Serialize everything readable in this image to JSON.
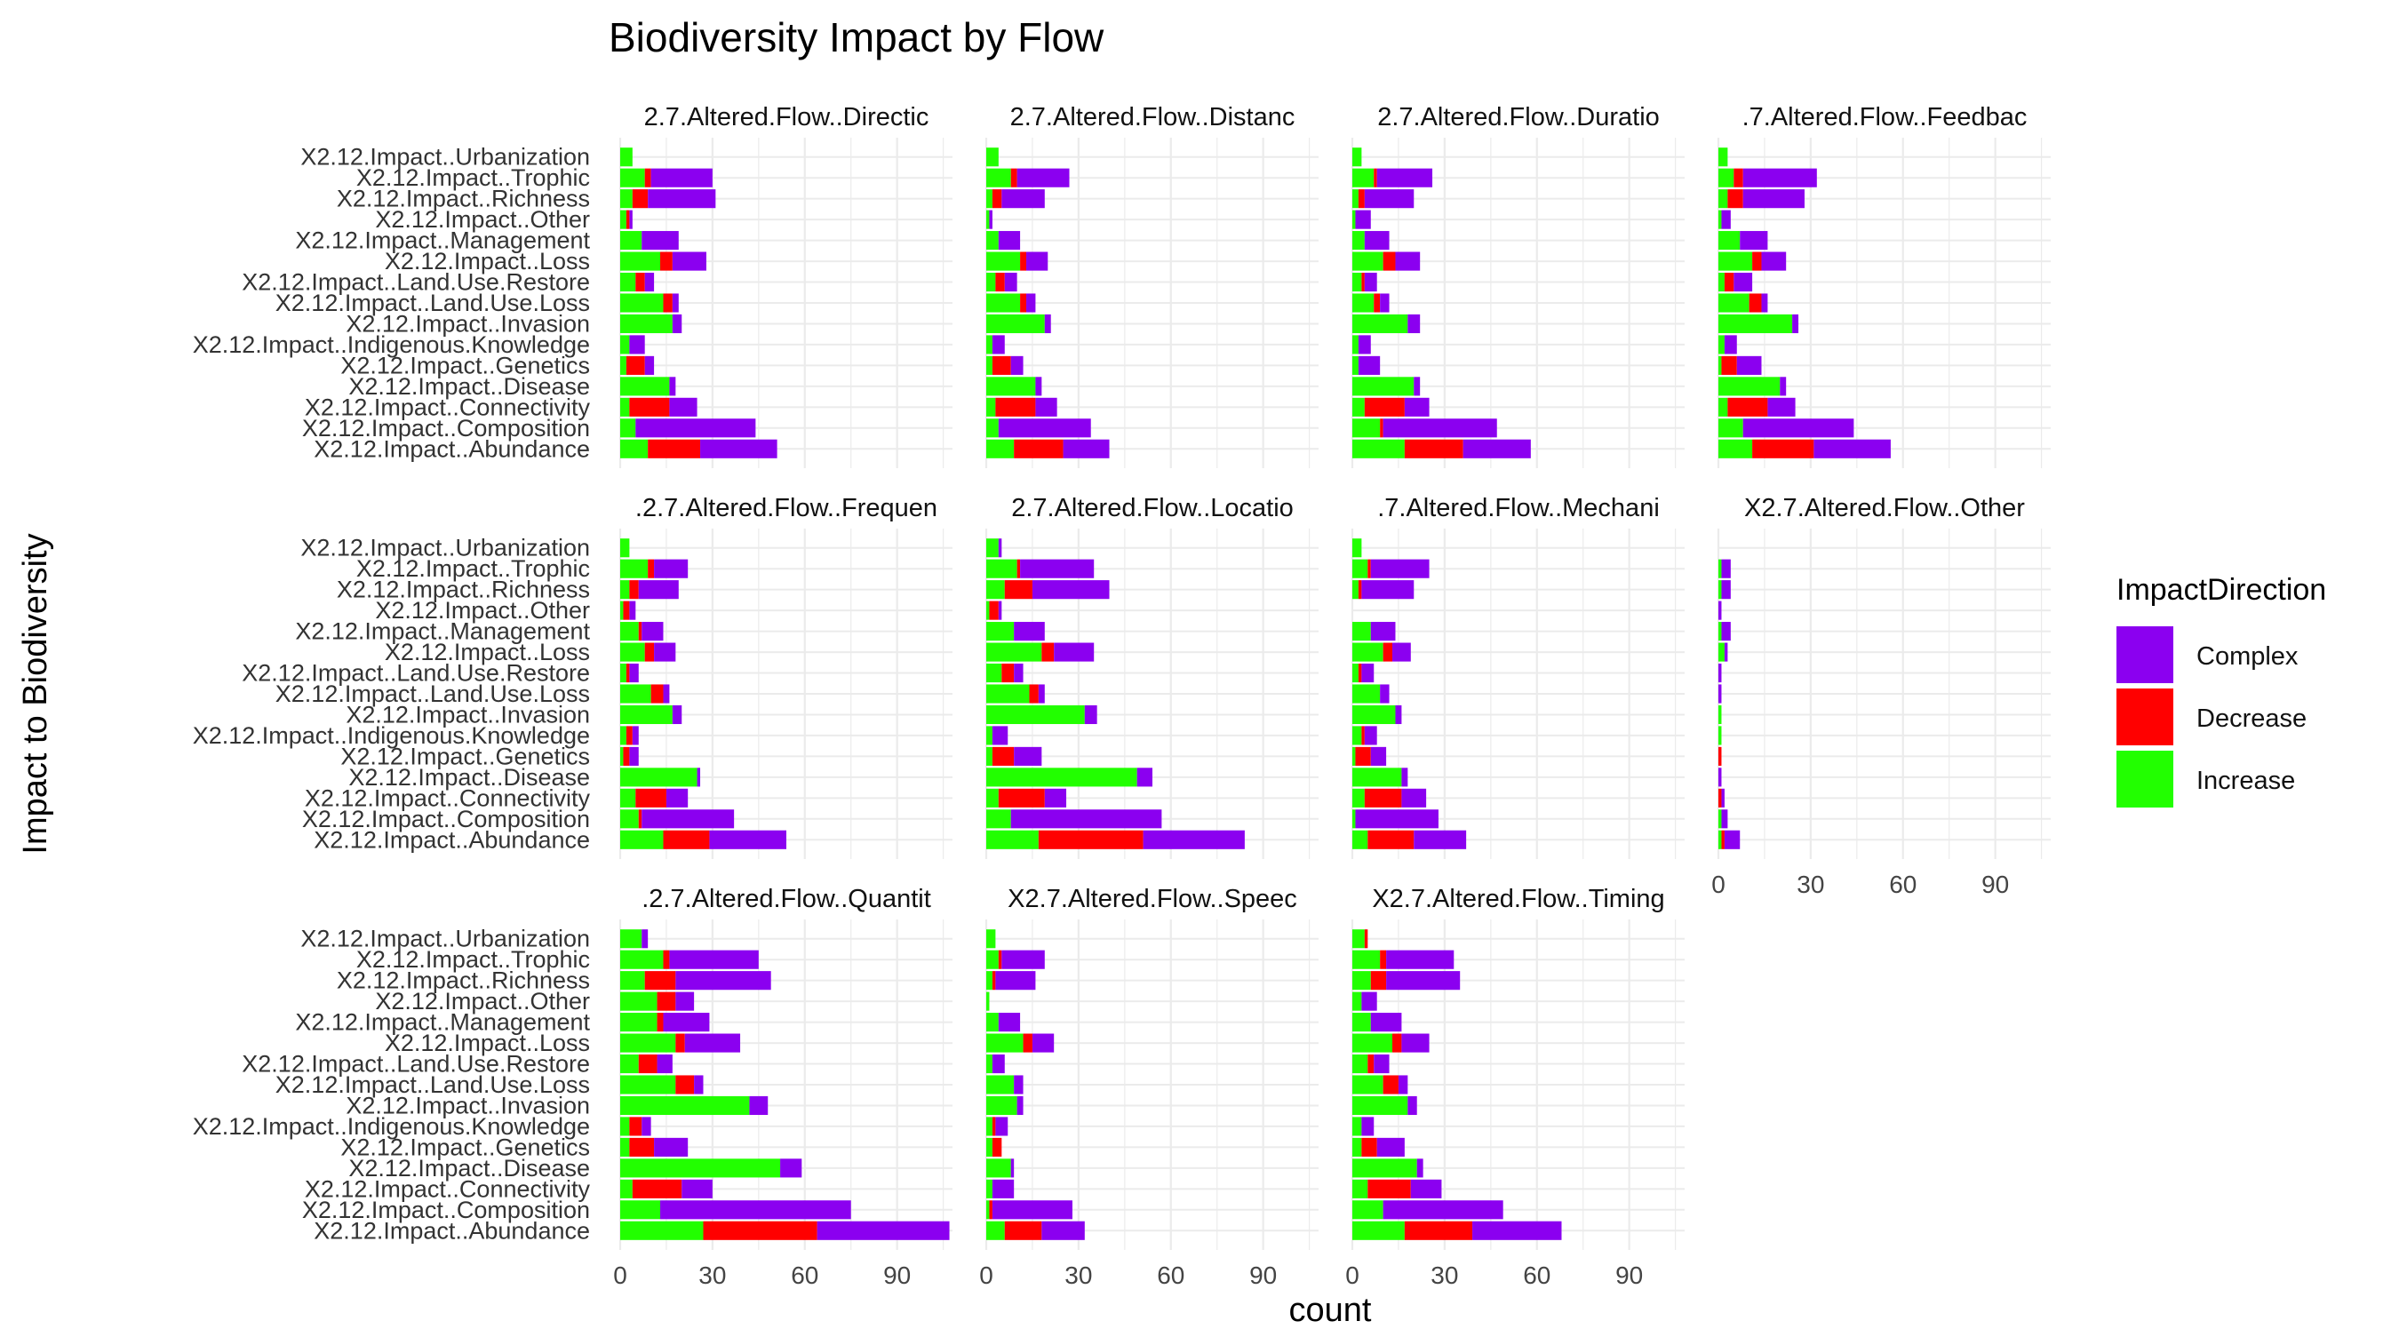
{
  "colors": {
    "Complex": "#8B00F0",
    "Decrease": "#FF0000",
    "Increase": "#22FF00",
    "panel_bg": "#FFFFFF",
    "grid": "#EBEBEB"
  },
  "chart_data": {
    "type": "bar",
    "orientation": "horizontal",
    "stacked": true,
    "title": "Biodiversity Impact by Flow",
    "xlabel": "count",
    "ylabel": "Impact to Biodiversity",
    "xlim": [
      0,
      108
    ],
    "x_ticks": [
      0,
      30,
      60,
      90
    ],
    "grid": true,
    "legend_position": "right",
    "legend_title": "ImpactDirection",
    "legend": [
      "Complex",
      "Decrease",
      "Increase"
    ],
    "stack_order": [
      "Increase",
      "Decrease",
      "Complex"
    ],
    "categories": [
      "X2.12.Impact..Urbanization",
      "X2.12.Impact..Trophic",
      "X2.12.Impact..Richness",
      "X2.12.Impact..Other",
      "X2.12.Impact..Management",
      "X2.12.Impact..Loss",
      "X2.12.Impact..Land.Use.Restore",
      "X2.12.Impact..Land.Use.Loss",
      "X2.12.Impact..Invasion",
      "X2.12.Impact..Indigenous.Knowledge",
      "X2.12.Impact..Genetics",
      "X2.12.Impact..Disease",
      "X2.12.Impact..Connectivity",
      "X2.12.Impact..Composition",
      "X2.12.Impact..Abundance"
    ],
    "facets": [
      {
        "strip": "2.7.Altered.Flow..Directic",
        "Increase": [
          4,
          8,
          4,
          2,
          7,
          13,
          5,
          14,
          17,
          3,
          2,
          16,
          3,
          5,
          9
        ],
        "Decrease": [
          0,
          2,
          5,
          1,
          0,
          4,
          3,
          3,
          0,
          0,
          6,
          0,
          13,
          0,
          17
        ],
        "Complex": [
          0,
          20,
          22,
          1,
          12,
          11,
          3,
          2,
          3,
          5,
          3,
          2,
          9,
          39,
          25
        ]
      },
      {
        "strip": "2.7.Altered.Flow..Distanc",
        "Increase": [
          4,
          8,
          2,
          1,
          4,
          11,
          3,
          11,
          19,
          2,
          2,
          16,
          3,
          4,
          9
        ],
        "Decrease": [
          0,
          2,
          3,
          0,
          0,
          2,
          3,
          2,
          0,
          0,
          6,
          0,
          13,
          0,
          16
        ],
        "Complex": [
          0,
          17,
          14,
          1,
          7,
          7,
          4,
          3,
          2,
          4,
          4,
          2,
          7,
          30,
          15
        ]
      },
      {
        "strip": "2.7.Altered.Flow..Duratio",
        "Increase": [
          3,
          7,
          2,
          1,
          4,
          10,
          3,
          7,
          18,
          2,
          2,
          20,
          4,
          9,
          17
        ],
        "Decrease": [
          0,
          1,
          2,
          0,
          0,
          4,
          1,
          2,
          0,
          0,
          0,
          0,
          13,
          1,
          19
        ],
        "Complex": [
          0,
          18,
          16,
          5,
          8,
          8,
          4,
          3,
          4,
          4,
          7,
          2,
          8,
          37,
          22
        ]
      },
      {
        "strip": ".7.Altered.Flow..Feedbac",
        "Increase": [
          3,
          5,
          3,
          1,
          7,
          11,
          2,
          10,
          24,
          2,
          1,
          20,
          3,
          8,
          11
        ],
        "Decrease": [
          0,
          3,
          5,
          0,
          0,
          3,
          3,
          4,
          0,
          0,
          5,
          0,
          13,
          0,
          20
        ],
        "Complex": [
          0,
          24,
          20,
          3,
          9,
          8,
          6,
          2,
          2,
          4,
          8,
          2,
          9,
          36,
          25
        ]
      },
      {
        "strip": ".2.7.Altered.Flow..Frequen",
        "Increase": [
          3,
          9,
          3,
          1,
          6,
          8,
          2,
          10,
          17,
          2,
          1,
          25,
          5,
          6,
          14
        ],
        "Decrease": [
          0,
          2,
          3,
          2,
          1,
          3,
          1,
          4,
          0,
          2,
          2,
          0,
          10,
          1,
          15
        ],
        "Complex": [
          0,
          11,
          13,
          2,
          7,
          7,
          3,
          2,
          3,
          2,
          3,
          1,
          7,
          30,
          25
        ]
      },
      {
        "strip": "2.7.Altered.Flow..Locatio",
        "Increase": [
          4,
          10,
          6,
          1,
          9,
          18,
          5,
          14,
          32,
          2,
          2,
          49,
          4,
          8,
          17
        ],
        "Decrease": [
          0,
          1,
          9,
          3,
          0,
          4,
          4,
          3,
          0,
          0,
          7,
          0,
          15,
          0,
          34
        ],
        "Complex": [
          1,
          24,
          25,
          1,
          10,
          13,
          3,
          2,
          4,
          5,
          9,
          5,
          7,
          49,
          33
        ]
      },
      {
        "strip": ".7.Altered.Flow..Mechani",
        "Increase": [
          3,
          5,
          2,
          0,
          6,
          10,
          2,
          9,
          14,
          3,
          1,
          16,
          4,
          1,
          5
        ],
        "Decrease": [
          0,
          1,
          1,
          0,
          0,
          3,
          1,
          0,
          0,
          1,
          5,
          0,
          12,
          0,
          15
        ],
        "Complex": [
          0,
          19,
          17,
          0,
          8,
          6,
          4,
          3,
          2,
          4,
          5,
          2,
          8,
          27,
          17
        ]
      },
      {
        "strip": "X2.7.Altered.Flow..Other",
        "Increase": [
          0,
          1,
          1,
          0,
          1,
          2,
          0,
          0,
          1,
          1,
          0,
          0,
          0,
          1,
          1
        ],
        "Decrease": [
          0,
          0,
          0,
          0,
          0,
          0,
          0,
          0,
          0,
          0,
          1,
          0,
          1,
          0,
          1
        ],
        "Complex": [
          0,
          3,
          3,
          1,
          3,
          1,
          1,
          1,
          0,
          0,
          0,
          1,
          1,
          2,
          5
        ]
      },
      {
        "strip": ".2.7.Altered.Flow..Quantit",
        "Increase": [
          7,
          14,
          8,
          12,
          12,
          18,
          6,
          18,
          42,
          3,
          3,
          52,
          4,
          13,
          27
        ],
        "Decrease": [
          0,
          2,
          10,
          6,
          2,
          3,
          6,
          6,
          0,
          4,
          8,
          0,
          16,
          0,
          37
        ],
        "Complex": [
          2,
          29,
          31,
          6,
          15,
          18,
          5,
          3,
          6,
          3,
          11,
          7,
          10,
          62,
          43
        ]
      },
      {
        "strip": "X2.7.Altered.Flow..Speec",
        "Increase": [
          3,
          4,
          2,
          1,
          4,
          12,
          2,
          9,
          10,
          2,
          2,
          8,
          2,
          1,
          6
        ],
        "Decrease": [
          0,
          1,
          1,
          0,
          0,
          3,
          0,
          0,
          0,
          1,
          3,
          0,
          0,
          1,
          12
        ],
        "Complex": [
          0,
          14,
          13,
          0,
          7,
          7,
          4,
          3,
          2,
          4,
          0,
          1,
          7,
          26,
          14
        ]
      },
      {
        "strip": "X2.7.Altered.Flow..Timing",
        "Increase": [
          4,
          9,
          6,
          3,
          6,
          13,
          5,
          10,
          18,
          3,
          3,
          21,
          5,
          10,
          17
        ],
        "Decrease": [
          1,
          2,
          5,
          0,
          0,
          3,
          2,
          5,
          0,
          0,
          5,
          0,
          14,
          0,
          22
        ],
        "Complex": [
          0,
          22,
          24,
          5,
          10,
          9,
          5,
          3,
          3,
          4,
          9,
          2,
          10,
          39,
          29
        ]
      }
    ]
  }
}
